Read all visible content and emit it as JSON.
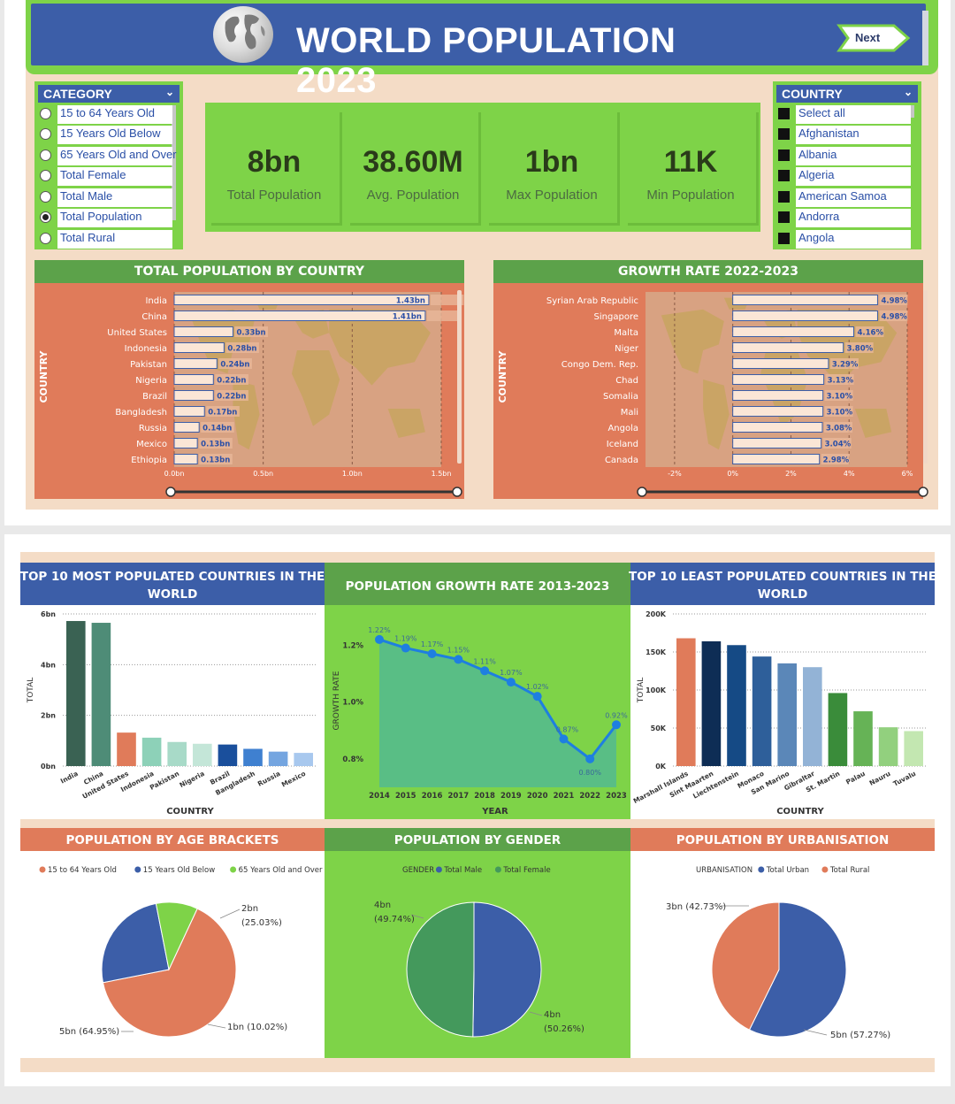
{
  "header": {
    "title": "WORLD POPULATION 2023",
    "next_label": "Next"
  },
  "category": {
    "title": "CATEGORY",
    "items": [
      "15 to 64 Years Old",
      "15 Years Old Below",
      "65 Years Old and Over",
      "Total Female",
      "Total Male",
      "Total Population",
      "Total Rural"
    ],
    "selected": 5
  },
  "country": {
    "title": "COUNTRY",
    "items": [
      "Select all",
      "Afghanistan",
      "Albania",
      "Algeria",
      "American Samoa",
      "Andorra",
      "Angola"
    ]
  },
  "kpis": [
    {
      "value": "8bn",
      "label": "Total Population"
    },
    {
      "value": "38.60M",
      "label": "Avg. Population"
    },
    {
      "value": "1bn",
      "label": "Max Population"
    },
    {
      "value": "11K",
      "label": "Min Population"
    }
  ],
  "colors": {
    "green": "#7ed348",
    "blue": "#3c5ea8",
    "salmon": "#e07b5a",
    "peach": "#f4dcc6"
  },
  "chart_data": [
    {
      "type": "bar",
      "title": "TOTAL POPULATION BY COUNTRY",
      "ylabel": "COUNTRY",
      "orientation": "horizontal",
      "categories": [
        "India",
        "China",
        "United States",
        "Indonesia",
        "Pakistan",
        "Nigeria",
        "Brazil",
        "Bangladesh",
        "Russia",
        "Mexico",
        "Ethiopia"
      ],
      "values": [
        1.43,
        1.41,
        0.33,
        0.28,
        0.24,
        0.22,
        0.22,
        0.17,
        0.14,
        0.13,
        0.13
      ],
      "data_labels": [
        "1.43bn",
        "1.41bn",
        "0.33bn",
        "0.28bn",
        "0.24bn",
        "0.22bn",
        "0.22bn",
        "0.17bn",
        "0.14bn",
        "0.13bn",
        "0.13bn"
      ],
      "xticks": [
        "0.0bn",
        "0.5bn",
        "1.0bn",
        "1.5bn"
      ],
      "xlim": [
        0,
        1.5
      ]
    },
    {
      "type": "bar",
      "title": "GROWTH RATE 2022-2023",
      "ylabel": "COUNTRY",
      "orientation": "horizontal",
      "categories": [
        "Syrian Arab Republic",
        "Singapore",
        "Malta",
        "Niger",
        "Congo Dem. Rep.",
        "Chad",
        "Somalia",
        "Mali",
        "Angola",
        "Iceland",
        "Canada"
      ],
      "values": [
        4.98,
        4.98,
        4.16,
        3.8,
        3.29,
        3.13,
        3.1,
        3.1,
        3.08,
        3.04,
        2.98
      ],
      "data_labels": [
        "4.98%",
        "4.98%",
        "4.16%",
        "3.80%",
        "3.29%",
        "3.13%",
        "3.10%",
        "3.10%",
        "3.08%",
        "3.04%",
        "2.98%"
      ],
      "xticks": [
        "-2%",
        "0%",
        "2%",
        "4%",
        "6%"
      ],
      "xlim": [
        -3,
        6
      ]
    },
    {
      "type": "bar",
      "title": "TOP 10 MOST POPULATED COUNTRIES IN THE WORLD",
      "xlabel": "COUNTRY",
      "ylabel": "TOTAL",
      "categories": [
        "India",
        "China",
        "United States",
        "Indonesia",
        "Pakistan",
        "Nigeria",
        "Brazil",
        "Bangladesh",
        "Russia",
        "Mexico"
      ],
      "values": [
        5.72,
        5.65,
        1.32,
        1.12,
        0.95,
        0.88,
        0.85,
        0.68,
        0.57,
        0.52
      ],
      "yticks": [
        "0bn",
        "2bn",
        "4bn",
        "6bn"
      ],
      "ylim": [
        0,
        6
      ]
    },
    {
      "type": "area",
      "title": "POPULATION GROWTH RATE 2013-2023",
      "xlabel": "YEAR",
      "ylabel": "GROWTH RATE",
      "x": [
        "2014",
        "2015",
        "2016",
        "2017",
        "2018",
        "2019",
        "2020",
        "2021",
        "2022",
        "2023"
      ],
      "values": [
        1.22,
        1.19,
        1.17,
        1.15,
        1.11,
        1.07,
        1.02,
        0.87,
        0.8,
        0.92
      ],
      "data_labels": [
        "1.22%",
        "1.19%",
        "1.17%",
        "1.15%",
        "1.11%",
        "1.07%",
        "1.02%",
        "0.87%",
        "0.80%",
        "0.92%"
      ],
      "yticks": [
        "0.8%",
        "1.0%",
        "1.2%"
      ],
      "ylim": [
        0.7,
        1.31
      ]
    },
    {
      "type": "bar",
      "title": "TOP 10 LEAST POPULATED COUNTRIES IN THE WORLD",
      "xlabel": "COUNTRY",
      "ylabel": "TOTAL",
      "categories": [
        "Marshall Islands",
        "Sint Maarten",
        "Liechtenstein",
        "Monaco",
        "San Marino",
        "Gibraltar",
        "St. Martin",
        "Palau",
        "Nauru",
        "Tuvalu"
      ],
      "values": [
        168000,
        164000,
        159000,
        144000,
        135000,
        130000,
        96000,
        72000,
        51000,
        46000
      ],
      "yticks": [
        "0K",
        "50K",
        "100K",
        "150K",
        "200K"
      ],
      "ylim": [
        0,
        200000
      ]
    },
    {
      "type": "pie",
      "title": "POPULATION BY AGE BRACKETS",
      "legend": [
        "15 to 64 Years Old",
        "15 Years Old Below",
        "65 Years Old and Over"
      ],
      "values": [
        64.95,
        25.03,
        10.02
      ],
      "value_labels": [
        "5bn (64.95%)",
        "2bn (25.03%)",
        "1bn (10.02%)"
      ]
    },
    {
      "type": "pie",
      "title": "POPULATION BY GENDER",
      "legend_title": "GENDER",
      "legend": [
        "Total Male",
        "Total Female"
      ],
      "values": [
        50.26,
        49.74
      ],
      "value_labels": [
        "4bn (50.26%)",
        "4bn (49.74%)"
      ]
    },
    {
      "type": "pie",
      "title": "POPULATION BY URBANISATION",
      "legend_title": "URBANISATION",
      "legend": [
        "Total Urban",
        "Total Rural"
      ],
      "values": [
        57.27,
        42.73
      ],
      "value_labels": [
        "5bn (57.27%)",
        "3bn (42.73%)"
      ]
    }
  ]
}
